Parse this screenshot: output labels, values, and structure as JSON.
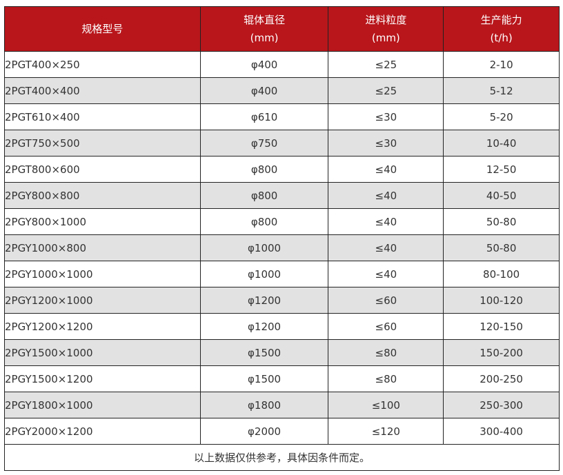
{
  "header": {
    "model": "规格型号",
    "roller_diameter": [
      "辊体直径",
      "(mm)"
    ],
    "feed_size": [
      "进料粒度",
      "(mm)"
    ],
    "capacity": [
      "生产能力",
      "(t/h)"
    ]
  },
  "colors": {
    "header_bg": "#b8161b",
    "alt_row": "#e2e2e2"
  },
  "rows": [
    [
      "2PGT400×250",
      "φ400",
      "≤25",
      "2-10"
    ],
    [
      "2PGT400×400",
      "φ400",
      "≤25",
      "5-12"
    ],
    [
      "2PGT610×400",
      "φ610",
      "≤30",
      "5-20"
    ],
    [
      "2PGT750×500",
      "φ750",
      "≤30",
      "10-40"
    ],
    [
      "2PGT800×600",
      "φ800",
      "≤40",
      "12-50"
    ],
    [
      "2PGY800×800",
      "φ800",
      "≤40",
      "40-50"
    ],
    [
      "2PGY800×1000",
      "φ800",
      "≤40",
      "50-80"
    ],
    [
      "2PGY1000×800",
      "φ1000",
      "≤40",
      "50-80"
    ],
    [
      "2PGY1000×1000",
      "φ1000",
      "≤40",
      "80-100"
    ],
    [
      "2PGY1200×1000",
      "φ1200",
      "≤60",
      "100-120"
    ],
    [
      "2PGY1200×1200",
      "φ1200",
      "≤60",
      "120-150"
    ],
    [
      "2PGY1500×1000",
      "φ1500",
      "≤80",
      "150-200"
    ],
    [
      "2PGY1500×1200",
      "φ1500",
      "≤80",
      "200-250"
    ],
    [
      "2PGY1800×1000",
      "φ1800",
      "≤100",
      "250-300"
    ],
    [
      "2PGY2000×1200",
      "φ2000",
      "≤120",
      "300-400"
    ]
  ],
  "footer": "以上数据仅供参考，具体因条件而定。"
}
